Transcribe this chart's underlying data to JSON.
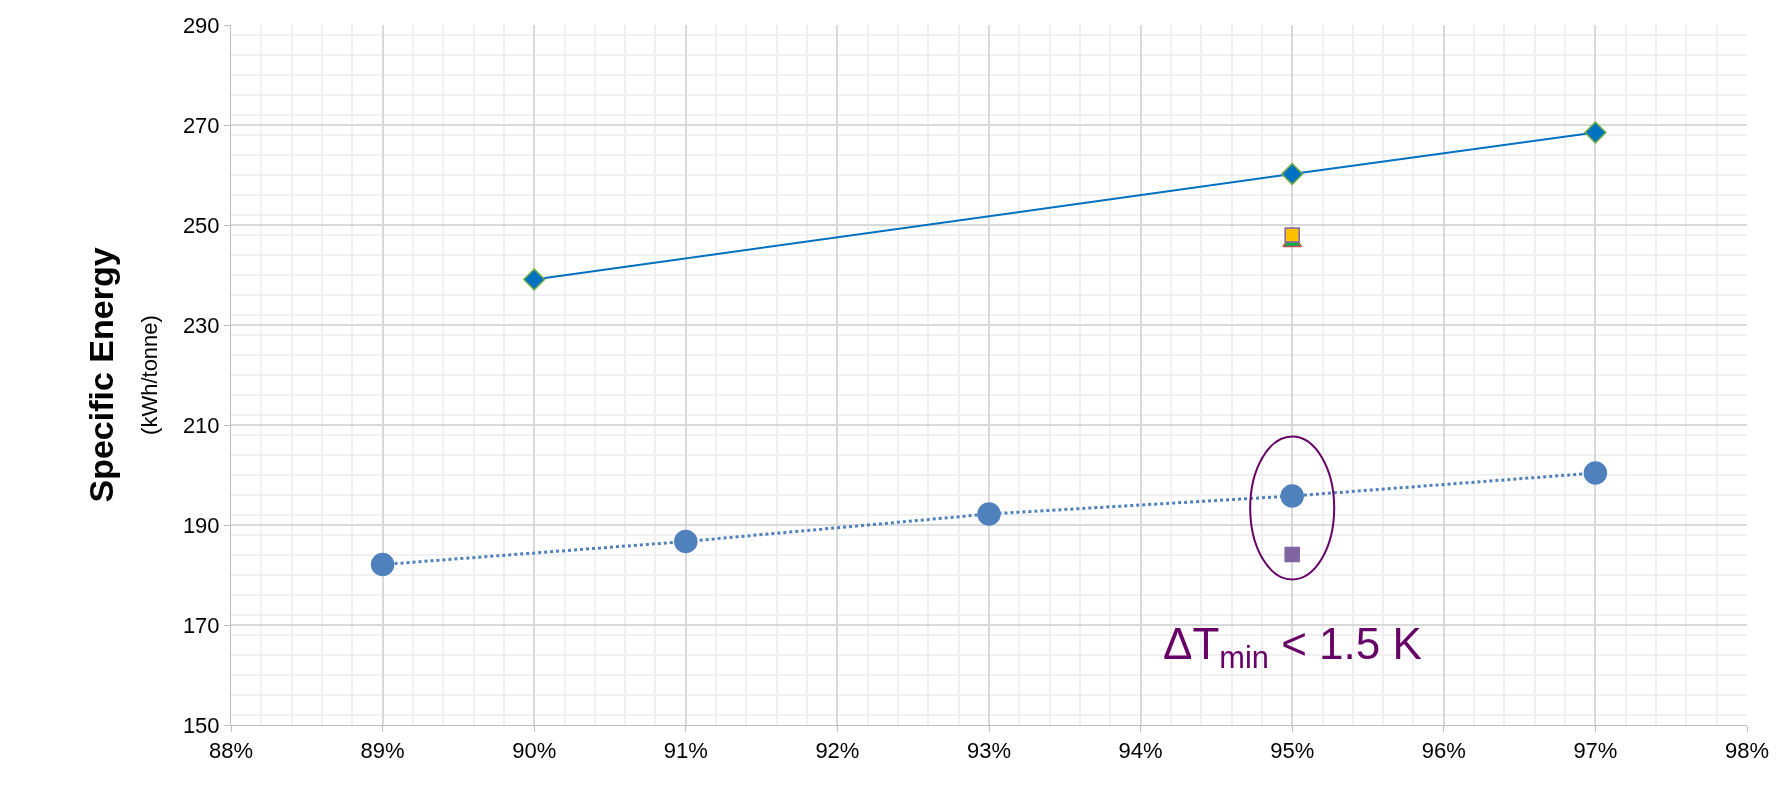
{
  "chart_data": {
    "type": "scatter",
    "ylabel": "Specific Energy\n(kWh/tonne)",
    "xlim": [
      88,
      98
    ],
    "xticks": [
      {
        "value": 88,
        "label": "88%"
      },
      {
        "value": 89,
        "label": "89%"
      },
      {
        "value": 90,
        "label": "90%"
      },
      {
        "value": 91,
        "label": "91%"
      },
      {
        "value": 92,
        "label": "92%"
      },
      {
        "value": 93,
        "label": "93%"
      },
      {
        "value": 94,
        "label": "94%"
      },
      {
        "value": 95,
        "label": "95%"
      },
      {
        "value": 96,
        "label": "96%"
      },
      {
        "value": 97,
        "label": "97%"
      },
      {
        "value": 98,
        "label": "98%"
      }
    ],
    "ylim": [
      150,
      290
    ],
    "yticks": [
      150,
      170,
      190,
      210,
      230,
      250,
      270,
      290
    ],
    "grid": true,
    "series": [
      {
        "type": "line",
        "color": "#0070c0",
        "marker": "diamond",
        "line_style": "solid",
        "x": [
          90,
          95,
          97
        ],
        "values": [
          239.1,
          260.2,
          268.5
        ]
      },
      {
        "type": "line",
        "color": "#4f81bd",
        "marker": "circle",
        "line_style": "dotted",
        "x": [
          89,
          91,
          93,
          95,
          97
        ],
        "values": [
          182.1,
          186.7,
          192.2,
          195.8,
          200.4
        ]
      },
      {
        "color": "#00b050",
        "marker": "triangle",
        "x": [
          95
        ],
        "values": [
          246.5
        ]
      },
      {
        "color": "#ffc000",
        "marker": "square",
        "x": [
          95
        ],
        "values": [
          248
        ]
      },
      {
        "color": "#8064a2",
        "marker": "square",
        "x": [
          95
        ],
        "values": [
          184.1
        ]
      }
    ],
    "annotations": [
      {
        "text": "ΔT$_{min}$ < 1.5 K",
        "x": 95,
        "y": 184.1
      }
    ]
  }
}
